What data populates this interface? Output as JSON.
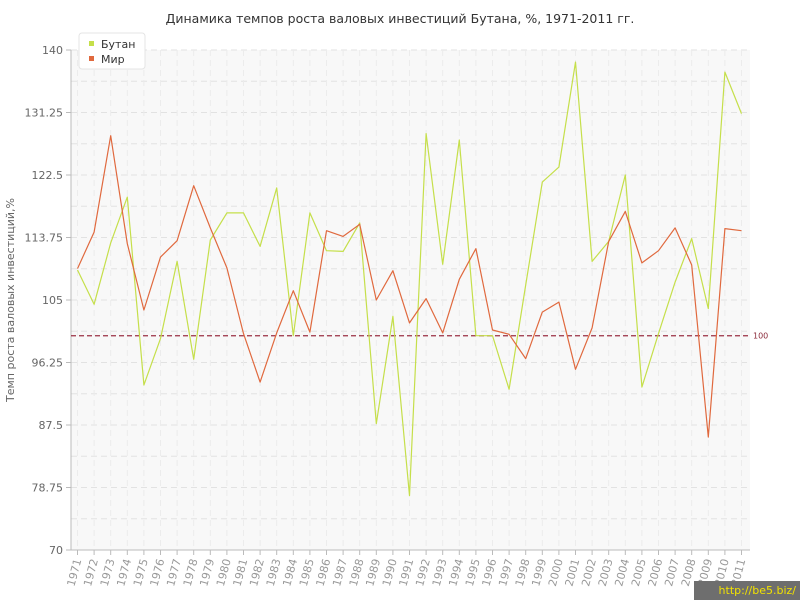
{
  "chart_data": {
    "type": "line",
    "title": "Динамика темпов роста валовых инвестиций Бутана, %, 1971-2011 гг.",
    "ylabel": "Темп роста валовых инвестиций,%",
    "xlabel": "",
    "ylim": [
      70,
      140
    ],
    "yticks": [
      "140",
      "131.25",
      "122.5",
      "113.75",
      "105",
      "96.25",
      "87.5",
      "78.75",
      "70"
    ],
    "categories": [
      "1971",
      "1972",
      "1973",
      "1974",
      "1975",
      "1976",
      "1977",
      "1978",
      "1979",
      "1980",
      "1981",
      "1982",
      "1983",
      "1984",
      "1985",
      "1986",
      "1987",
      "1988",
      "1989",
      "1990",
      "1991",
      "1992",
      "1993",
      "1994",
      "1995",
      "1996",
      "1997",
      "1998",
      "1999",
      "2000",
      "2001",
      "2002",
      "2003",
      "2004",
      "2005",
      "2006",
      "2007",
      "2008",
      "2009",
      "2010",
      "2011"
    ],
    "series": [
      {
        "name": "Бутан",
        "color": "#c5df4a",
        "values": [
          109.2,
          104.4,
          113.0,
          119.4,
          93.1,
          99.6,
          110.4,
          96.7,
          113.4,
          117.2,
          117.2,
          112.5,
          120.7,
          100.0,
          117.2,
          111.9,
          111.8,
          115.8,
          87.7,
          102.7,
          77.6,
          128.3,
          110.0,
          127.4,
          100.0,
          100.0,
          92.5,
          107.1,
          121.5,
          123.6,
          138.3,
          110.4,
          113.2,
          122.5,
          92.8,
          100.3,
          107.5,
          113.6,
          103.8,
          136.9,
          131.1
        ]
      },
      {
        "name": "Мир",
        "color": "#e0693e",
        "values": [
          109.4,
          114.5,
          128.0,
          112.9,
          103.6,
          111.0,
          113.3,
          121.0,
          115.1,
          109.5,
          100.3,
          93.5,
          100.4,
          106.3,
          100.5,
          114.7,
          113.9,
          115.6,
          105.0,
          109.1,
          101.8,
          105.2,
          100.4,
          107.9,
          112.2,
          100.8,
          100.2,
          96.8,
          103.3,
          104.7,
          95.3,
          101.1,
          113.2,
          117.4,
          110.2,
          111.9,
          115.1,
          109.9,
          85.8,
          115.0,
          114.7
        ]
      }
    ],
    "reference_line": {
      "value": 100,
      "label": "100",
      "color": "#9a3044"
    },
    "legend_position": "top-left",
    "grid": true
  },
  "watermark": "http://be5.biz/"
}
